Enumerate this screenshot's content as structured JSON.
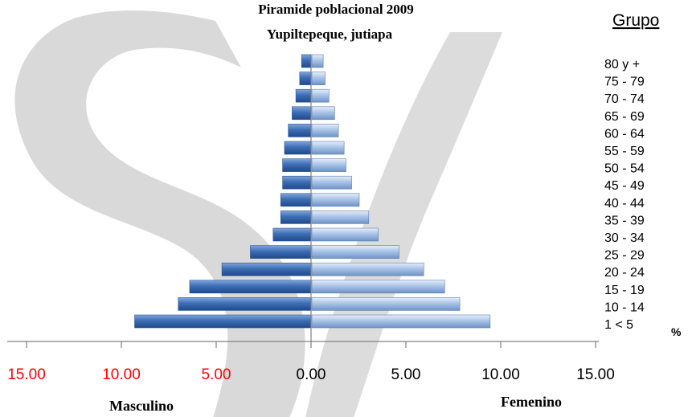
{
  "chart_data": {
    "type": "bar",
    "title": "Piramide poblacional 2009",
    "subtitle": "Yupiltepeque, jutiapa",
    "legend_title": "Grupo",
    "unit_label": "%",
    "categories": [
      "1 < 5",
      "10 - 14",
      "15 - 19",
      "20 - 24",
      "25 - 29",
      "30 - 34",
      "35 - 39",
      "40 - 44",
      "45 - 49",
      "50 - 54",
      "55 - 59",
      "60 - 64",
      "65 - 69",
      "70 - 74",
      "75 - 79",
      "80 y +"
    ],
    "series": [
      {
        "name": "Masculino",
        "values": [
          9.3,
          7.0,
          6.4,
          4.7,
          3.2,
          2.0,
          1.6,
          1.6,
          1.5,
          1.5,
          1.4,
          1.2,
          1.0,
          0.8,
          0.6,
          0.5
        ]
      },
      {
        "name": "Femenino",
        "values": [
          9.4,
          7.8,
          7.0,
          5.9,
          4.6,
          3.5,
          3.0,
          2.5,
          2.1,
          1.8,
          1.7,
          1.4,
          1.2,
          0.9,
          0.7,
          0.6
        ]
      }
    ],
    "xlim": [
      -15,
      15
    ],
    "x_ticks": [
      "15.00",
      "10.00",
      "5.00",
      "0.00",
      "5.00",
      "10.00",
      "15.00"
    ],
    "x_tick_values": [
      -15,
      -10,
      -5,
      0,
      5,
      10,
      15
    ],
    "left_tick_color": "#ff0000",
    "right_tick_color": "#000000",
    "xlabel_left": "Masculino",
    "xlabel_right": "Femenino",
    "bar_color_male": "#3d6db5",
    "bar_color_female": "#a9c4e8",
    "watermark_color": "#d9d9d9"
  }
}
